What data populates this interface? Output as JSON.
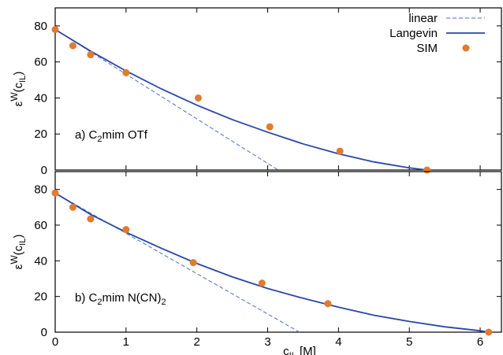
{
  "colors": {
    "langevin": "#2b46a8",
    "linear": "#4f6cc0",
    "sim": "#e07b2f",
    "axis": "#000000"
  },
  "legend": {
    "linear": "linear",
    "langevin": "Langevin",
    "sim": "SIM"
  },
  "xlabel": "c_IL [M]",
  "ylabel": "ε^W(c_IL)",
  "chart_data": [
    {
      "type": "line",
      "panel": "top",
      "annotation": {
        "prefix": "a) C",
        "sub": "2",
        "suffix": "mim OTf"
      },
      "xlim": [
        0,
        6.3
      ],
      "ylim": [
        0,
        90
      ],
      "xticks": [
        0,
        1,
        2,
        3,
        4,
        5,
        6
      ],
      "yticks": [
        0,
        20,
        40,
        60,
        80
      ],
      "show_xtick_labels": false,
      "series": [
        {
          "name": "linear",
          "style": "dashed",
          "x": [
            0,
            0.5,
            1.0,
            1.5,
            2.0,
            2.5,
            3.15
          ],
          "y": [
            78,
            65.6,
            53.2,
            40.8,
            28.4,
            16.0,
            0
          ]
        },
        {
          "name": "Langevin",
          "style": "solid",
          "x": [
            0,
            0.5,
            1.0,
            1.5,
            2.0,
            2.5,
            3.0,
            3.5,
            4.0,
            4.5,
            5.0,
            5.25
          ],
          "y": [
            78,
            66,
            55,
            45,
            36,
            28,
            21,
            14.5,
            9,
            4.5,
            1.2,
            0
          ]
        },
        {
          "name": "SIM",
          "style": "points",
          "x": [
            0,
            0.25,
            0.5,
            1.0,
            2.02,
            3.03,
            4.02,
            5.25
          ],
          "y": [
            78,
            69,
            64,
            54,
            40,
            24,
            10.5,
            0
          ]
        }
      ]
    },
    {
      "type": "line",
      "panel": "bottom",
      "annotation": {
        "prefix": "b) C",
        "sub": "2",
        "suffix": "mim N(CN)",
        "sub2": "2"
      },
      "xlim": [
        0,
        6.3
      ],
      "ylim": [
        0,
        90
      ],
      "xticks": [
        0,
        1,
        2,
        3,
        4,
        5,
        6
      ],
      "yticks": [
        0,
        20,
        40,
        60,
        80
      ],
      "show_xtick_labels": true,
      "series": [
        {
          "name": "linear",
          "style": "dashed",
          "x": [
            0,
            0.5,
            1.0,
            1.5,
            2.0,
            2.5,
            3.0,
            3.45
          ],
          "y": [
            78,
            66.7,
            55.4,
            44.1,
            32.8,
            21.5,
            10.2,
            0
          ]
        },
        {
          "name": "Langevin",
          "style": "solid",
          "x": [
            0,
            0.5,
            1.0,
            1.5,
            2.0,
            2.5,
            3.0,
            3.5,
            4.0,
            4.5,
            5.0,
            5.5,
            6.0,
            6.12
          ],
          "y": [
            78,
            66,
            56,
            47,
            38.5,
            31,
            24.5,
            19,
            14,
            9.5,
            6,
            3,
            0.8,
            0
          ]
        },
        {
          "name": "SIM",
          "style": "points",
          "x": [
            0,
            0.25,
            0.5,
            1.0,
            1.95,
            2.92,
            3.85,
            6.12
          ],
          "y": [
            78,
            70,
            63.5,
            57.5,
            39,
            27.5,
            16,
            0
          ]
        }
      ]
    }
  ]
}
